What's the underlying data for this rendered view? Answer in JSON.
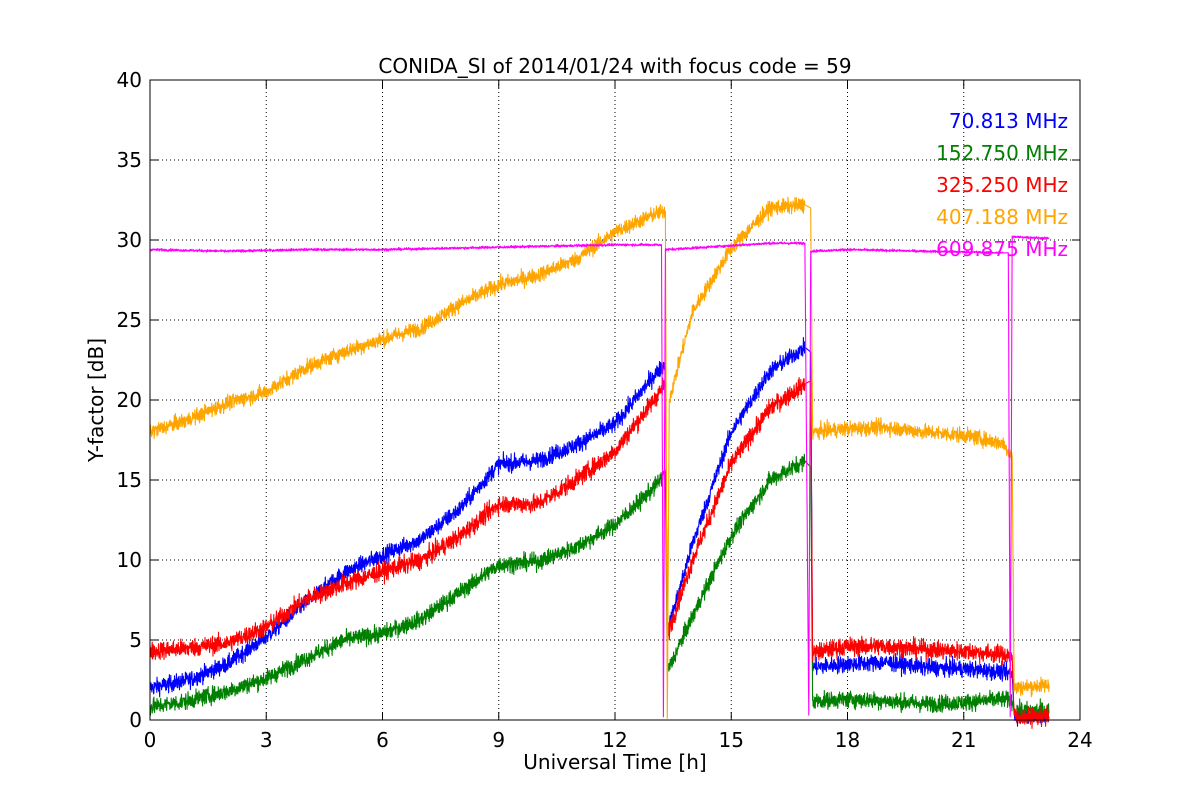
{
  "chart_data": {
    "type": "line",
    "title": "CONIDA_SI of 2014/01/24 with focus code = 59",
    "xlabel": "Universal Time [h]",
    "ylabel": "Y-factor [dB]",
    "xlim": [
      0,
      24
    ],
    "ylim": [
      0,
      40
    ],
    "xticks": [
      0,
      3,
      6,
      9,
      12,
      15,
      18,
      21,
      24
    ],
    "yticks": [
      0,
      5,
      10,
      15,
      20,
      25,
      30,
      35,
      40
    ],
    "grid": true,
    "legend_placement": "top-right",
    "series": [
      {
        "name": "70.813 MHz",
        "color": "#0000ff",
        "noise": 0.55,
        "points": [
          [
            0,
            2.0
          ],
          [
            1,
            2.5
          ],
          [
            2,
            3.5
          ],
          [
            3,
            5.2
          ],
          [
            4,
            7.3
          ],
          [
            5,
            9.2
          ],
          [
            6,
            10.3
          ],
          [
            7,
            11.3
          ],
          [
            8,
            13.2
          ],
          [
            9,
            16.0
          ],
          [
            10,
            16.2
          ],
          [
            11,
            17.2
          ],
          [
            12,
            18.5
          ],
          [
            13,
            21.5
          ],
          [
            13.3,
            22.3
          ],
          [
            13.35,
            5.5
          ],
          [
            14,
            11.0
          ],
          [
            15,
            18.0
          ],
          [
            16,
            21.8
          ],
          [
            16.9,
            23.3
          ],
          [
            17.05,
            23.0
          ],
          [
            17.1,
            3.3
          ],
          [
            18,
            3.5
          ],
          [
            19,
            3.6
          ],
          [
            20,
            3.3
          ],
          [
            21,
            3.2
          ],
          [
            22,
            3.0
          ],
          [
            22.25,
            2.9
          ],
          [
            22.3,
            0.3
          ],
          [
            23.2,
            0.2
          ]
        ]
      },
      {
        "name": "152.750 MHz",
        "color": "#008000",
        "noise": 0.55,
        "points": [
          [
            0,
            0.8
          ],
          [
            1,
            1.2
          ],
          [
            2,
            1.8
          ],
          [
            3,
            2.6
          ],
          [
            4,
            3.8
          ],
          [
            5,
            5.0
          ],
          [
            6,
            5.4
          ],
          [
            7,
            6.3
          ],
          [
            8,
            8.0
          ],
          [
            9,
            9.7
          ],
          [
            10,
            9.9
          ],
          [
            11,
            10.8
          ],
          [
            12,
            12.2
          ],
          [
            13,
            14.5
          ],
          [
            13.3,
            15.5
          ],
          [
            13.35,
            3.0
          ],
          [
            14,
            6.5
          ],
          [
            15,
            11.5
          ],
          [
            16,
            15.0
          ],
          [
            16.9,
            16.2
          ],
          [
            17.05,
            15.8
          ],
          [
            17.1,
            1.2
          ],
          [
            18,
            1.3
          ],
          [
            19,
            1.2
          ],
          [
            20,
            1.0
          ],
          [
            21,
            1.1
          ],
          [
            22,
            1.3
          ],
          [
            22.25,
            1.2
          ],
          [
            22.3,
            0.6
          ],
          [
            23.2,
            0.6
          ]
        ]
      },
      {
        "name": "325.250 MHz",
        "color": "#ff0000",
        "noise": 0.6,
        "points": [
          [
            0,
            4.3
          ],
          [
            1,
            4.5
          ],
          [
            2,
            4.8
          ],
          [
            3,
            5.8
          ],
          [
            4,
            7.5
          ],
          [
            5,
            8.5
          ],
          [
            6,
            9.3
          ],
          [
            7,
            10.0
          ],
          [
            8,
            11.5
          ],
          [
            9,
            13.5
          ],
          [
            10,
            13.5
          ],
          [
            11,
            15.0
          ],
          [
            12,
            16.8
          ],
          [
            13,
            20.0
          ],
          [
            13.3,
            21.0
          ],
          [
            13.35,
            5.3
          ],
          [
            14,
            10.0
          ],
          [
            15,
            16.0
          ],
          [
            16,
            19.5
          ],
          [
            16.9,
            21.0
          ],
          [
            17.05,
            21.2
          ],
          [
            17.1,
            4.2
          ],
          [
            18,
            4.6
          ],
          [
            19,
            4.6
          ],
          [
            20,
            4.4
          ],
          [
            21,
            4.3
          ],
          [
            22,
            4.1
          ],
          [
            22.25,
            4.0
          ],
          [
            22.3,
            0.2
          ],
          [
            23.2,
            0.2
          ]
        ]
      },
      {
        "name": "407.188 MHz",
        "color": "#ffa500",
        "noise": 0.5,
        "points": [
          [
            0,
            18.0
          ],
          [
            1,
            18.8
          ],
          [
            2,
            19.8
          ],
          [
            3,
            20.5
          ],
          [
            4,
            22.0
          ],
          [
            5,
            23.0
          ],
          [
            6,
            23.8
          ],
          [
            7,
            24.5
          ],
          [
            8,
            26.0
          ],
          [
            9,
            27.2
          ],
          [
            10,
            27.8
          ],
          [
            11,
            28.8
          ],
          [
            12,
            30.5
          ],
          [
            13,
            31.6
          ],
          [
            13.3,
            31.8
          ],
          [
            13.35,
            0.1
          ],
          [
            13.4,
            20.0
          ],
          [
            14,
            25.5
          ],
          [
            15,
            29.5
          ],
          [
            16,
            32.0
          ],
          [
            16.9,
            32.2
          ],
          [
            17.05,
            32.0
          ],
          [
            17.1,
            18.0
          ],
          [
            18,
            18.2
          ],
          [
            19,
            18.3
          ],
          [
            20,
            18.0
          ],
          [
            21,
            17.8
          ],
          [
            22,
            17.3
          ],
          [
            22.25,
            16.5
          ],
          [
            22.3,
            2.0
          ],
          [
            23.2,
            2.2
          ]
        ]
      },
      {
        "name": "609.875 MHz",
        "color": "#ff00ff",
        "noise": 0.08,
        "points": [
          [
            0,
            29.4
          ],
          [
            2,
            29.3
          ],
          [
            4,
            29.4
          ],
          [
            6,
            29.4
          ],
          [
            8,
            29.5
          ],
          [
            10,
            29.6
          ],
          [
            12,
            29.7
          ],
          [
            13.2,
            29.7
          ],
          [
            13.25,
            0.2
          ],
          [
            13.3,
            29.4
          ],
          [
            14,
            29.5
          ],
          [
            16,
            29.8
          ],
          [
            16.9,
            29.8
          ],
          [
            17.0,
            0.3
          ],
          [
            17.05,
            29.3
          ],
          [
            18,
            29.4
          ],
          [
            20,
            29.3
          ],
          [
            22,
            29.2
          ],
          [
            22.15,
            29.2
          ],
          [
            22.2,
            0.2
          ],
          [
            22.25,
            30.2
          ],
          [
            23.2,
            30.1
          ]
        ]
      }
    ]
  }
}
